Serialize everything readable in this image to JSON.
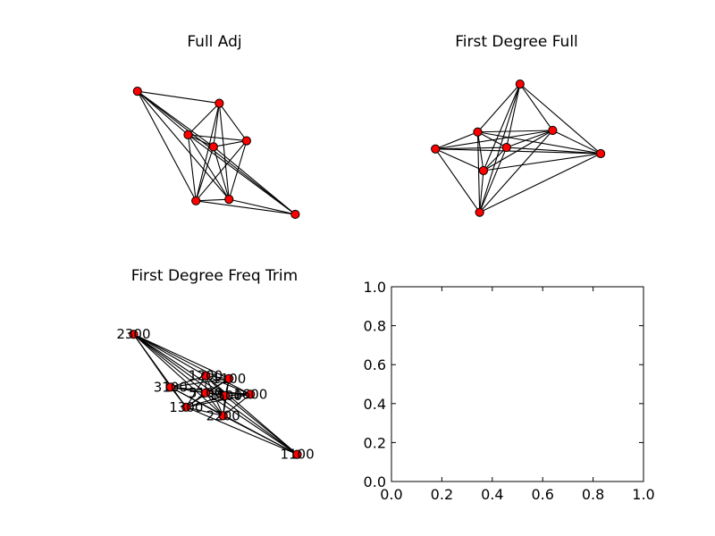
{
  "chart_data": [
    {
      "type": "network",
      "title": "Full Adj",
      "nodes": [
        {
          "id": "n0",
          "x": 0.1,
          "y": 0.88
        },
        {
          "id": "n1",
          "x": 0.52,
          "y": 0.8
        },
        {
          "id": "n2",
          "x": 0.36,
          "y": 0.59
        },
        {
          "id": "n3",
          "x": 0.66,
          "y": 0.55
        },
        {
          "id": "n4",
          "x": 0.49,
          "y": 0.51
        },
        {
          "id": "n5",
          "x": 0.4,
          "y": 0.15
        },
        {
          "id": "n6",
          "x": 0.57,
          "y": 0.16
        },
        {
          "id": "n7",
          "x": 0.91,
          "y": 0.06
        }
      ],
      "edges": [
        [
          "n0",
          "n1"
        ],
        [
          "n0",
          "n2"
        ],
        [
          "n0",
          "n4"
        ],
        [
          "n0",
          "n5"
        ],
        [
          "n0",
          "n6"
        ],
        [
          "n0",
          "n7"
        ],
        [
          "n1",
          "n2"
        ],
        [
          "n1",
          "n3"
        ],
        [
          "n1",
          "n4"
        ],
        [
          "n1",
          "n5"
        ],
        [
          "n1",
          "n6"
        ],
        [
          "n2",
          "n3"
        ],
        [
          "n2",
          "n4"
        ],
        [
          "n2",
          "n5"
        ],
        [
          "n2",
          "n6"
        ],
        [
          "n2",
          "n7"
        ],
        [
          "n3",
          "n4"
        ],
        [
          "n3",
          "n5"
        ],
        [
          "n3",
          "n6"
        ],
        [
          "n4",
          "n5"
        ],
        [
          "n4",
          "n6"
        ],
        [
          "n4",
          "n7"
        ],
        [
          "n5",
          "n6"
        ],
        [
          "n5",
          "n7"
        ],
        [
          "n6",
          "n7"
        ]
      ]
    },
    {
      "type": "network",
      "title": "First Degree Full",
      "nodes": [
        {
          "id": "m0",
          "x": 0.52,
          "y": 0.93
        },
        {
          "id": "m1",
          "x": 0.3,
          "y": 0.62
        },
        {
          "id": "m2",
          "x": 0.69,
          "y": 0.63
        },
        {
          "id": "m3",
          "x": 0.08,
          "y": 0.51
        },
        {
          "id": "m4",
          "x": 0.45,
          "y": 0.52
        },
        {
          "id": "m5",
          "x": 0.94,
          "y": 0.48
        },
        {
          "id": "m6",
          "x": 0.33,
          "y": 0.37
        },
        {
          "id": "m7",
          "x": 0.31,
          "y": 0.1
        }
      ],
      "edges": [
        [
          "m0",
          "m1"
        ],
        [
          "m0",
          "m2"
        ],
        [
          "m0",
          "m4"
        ],
        [
          "m0",
          "m5"
        ],
        [
          "m0",
          "m6"
        ],
        [
          "m0",
          "m7"
        ],
        [
          "m1",
          "m2"
        ],
        [
          "m1",
          "m3"
        ],
        [
          "m1",
          "m4"
        ],
        [
          "m1",
          "m5"
        ],
        [
          "m1",
          "m6"
        ],
        [
          "m1",
          "m7"
        ],
        [
          "m2",
          "m3"
        ],
        [
          "m2",
          "m4"
        ],
        [
          "m2",
          "m5"
        ],
        [
          "m2",
          "m6"
        ],
        [
          "m2",
          "m7"
        ],
        [
          "m3",
          "m4"
        ],
        [
          "m3",
          "m5"
        ],
        [
          "m3",
          "m6"
        ],
        [
          "m3",
          "m7"
        ],
        [
          "m4",
          "m5"
        ],
        [
          "m4",
          "m6"
        ],
        [
          "m4",
          "m7"
        ],
        [
          "m5",
          "m6"
        ],
        [
          "m5",
          "m7"
        ],
        [
          "m6",
          "m7"
        ]
      ]
    },
    {
      "type": "network",
      "title": "First Degree Freq Trim",
      "nodes": [
        {
          "id": "2300",
          "label": "2300",
          "x": 0.08,
          "y": 0.88
        },
        {
          "id": "1200",
          "label": "1200",
          "x": 0.45,
          "y": 0.59
        },
        {
          "id": "1100a",
          "label": "1100",
          "x": 0.57,
          "y": 0.57
        },
        {
          "id": "3100",
          "label": "3100",
          "x": 0.27,
          "y": 0.51
        },
        {
          "id": "5100",
          "label": "5100",
          "x": 0.45,
          "y": 0.47
        },
        {
          "id": "1500",
          "label": "1500",
          "x": 0.55,
          "y": 0.45
        },
        {
          "id": "1600",
          "label": "1600",
          "x": 0.68,
          "y": 0.46
        },
        {
          "id": "1300",
          "label": "1300",
          "x": 0.35,
          "y": 0.37
        },
        {
          "id": "2200",
          "label": "2200",
          "x": 0.54,
          "y": 0.31
        },
        {
          "id": "1100",
          "label": "1100",
          "x": 0.92,
          "y": 0.04
        }
      ],
      "edges": [
        [
          "2300",
          "1200"
        ],
        [
          "2300",
          "1100a"
        ],
        [
          "2300",
          "3100"
        ],
        [
          "2300",
          "5100"
        ],
        [
          "2300",
          "1500"
        ],
        [
          "2300",
          "1600"
        ],
        [
          "2300",
          "1300"
        ],
        [
          "2300",
          "2200"
        ],
        [
          "2300",
          "1100"
        ],
        [
          "1200",
          "1100a"
        ],
        [
          "1200",
          "3100"
        ],
        [
          "1200",
          "5100"
        ],
        [
          "1200",
          "1500"
        ],
        [
          "1200",
          "1600"
        ],
        [
          "1200",
          "1300"
        ],
        [
          "1200",
          "2200"
        ],
        [
          "1200",
          "1100"
        ],
        [
          "1100a",
          "3100"
        ],
        [
          "1100a",
          "5100"
        ],
        [
          "1100a",
          "1500"
        ],
        [
          "1100a",
          "1300"
        ],
        [
          "1100a",
          "2200"
        ],
        [
          "3100",
          "5100"
        ],
        [
          "3100",
          "1500"
        ],
        [
          "3100",
          "1600"
        ],
        [
          "3100",
          "1300"
        ],
        [
          "3100",
          "2200"
        ],
        [
          "3100",
          "1100"
        ],
        [
          "5100",
          "1500"
        ],
        [
          "5100",
          "1600"
        ],
        [
          "5100",
          "1300"
        ],
        [
          "5100",
          "2200"
        ],
        [
          "5100",
          "1100"
        ],
        [
          "1500",
          "1600"
        ],
        [
          "1500",
          "1300"
        ],
        [
          "1500",
          "2200"
        ],
        [
          "1500",
          "1100"
        ],
        [
          "1600",
          "1300"
        ],
        [
          "1600",
          "2200"
        ],
        [
          "1300",
          "2200"
        ],
        [
          "1300",
          "1100"
        ],
        [
          "2200",
          "1100"
        ]
      ]
    },
    {
      "type": "scatter",
      "title": "",
      "series": [],
      "xlim": [
        0.0,
        1.0
      ],
      "ylim": [
        0.0,
        1.0
      ],
      "xticks": [
        "0.0",
        "0.2",
        "0.4",
        "0.6",
        "0.8",
        "1.0"
      ],
      "yticks": [
        "0.0",
        "0.2",
        "0.4",
        "0.6",
        "0.8",
        "1.0"
      ],
      "grid": false
    }
  ],
  "colors": {
    "node": "#ff0000",
    "edge": "#000000",
    "background": "#ffffff"
  }
}
